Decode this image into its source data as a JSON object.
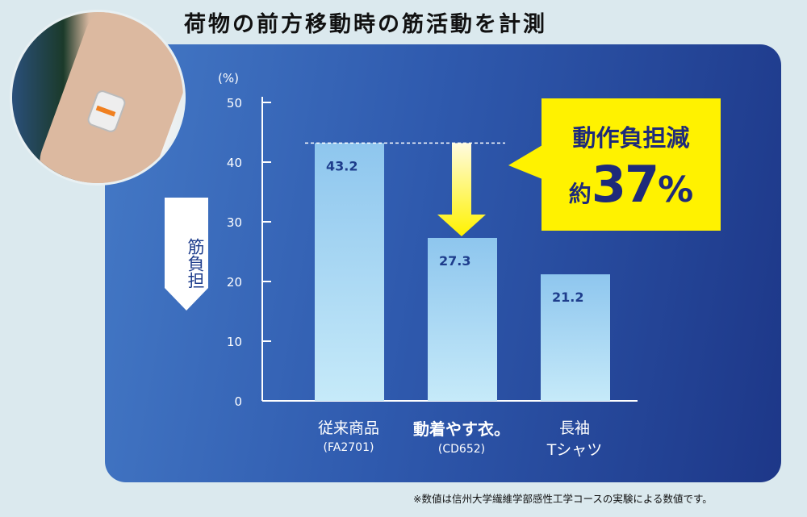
{
  "title": "荷物の前方移動時の筋活動を計測",
  "chart_data": {
    "type": "bar",
    "categories": [
      {
        "name": "従来商品",
        "code": "(FA2701)"
      },
      {
        "name": "動着やす衣。",
        "code": "(CD652)"
      },
      {
        "name": "長袖",
        "code": "Tシャツ"
      }
    ],
    "values": [
      43.2,
      27.3,
      21.2
    ],
    "value_labels": [
      "43.2",
      "27.3",
      "21.2"
    ],
    "ylabel": "筋負担",
    "yunit": "(%)",
    "ylim": [
      0,
      50
    ],
    "yticks": [
      0,
      10,
      20,
      30,
      40,
      50
    ],
    "grid": false,
    "annotation": {
      "line1": "動作負担減",
      "prefix": "約",
      "value": "37",
      "suffix": "%"
    },
    "colors": {
      "bar_top": "#8ec6ee",
      "bar_bottom": "#c3e8f8",
      "callout": "#fff200",
      "label": "#1e3d8c"
    }
  },
  "photo": {
    "icon": "arm-sensor-photo"
  },
  "footnote": "※数値は信州大学繊維学部感性工学コースの実験による数値です。"
}
